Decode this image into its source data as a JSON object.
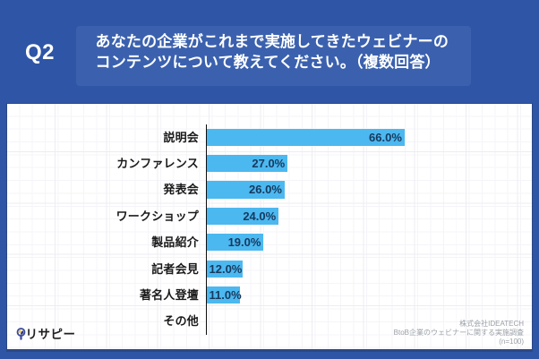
{
  "header": {
    "q_label": "Q2",
    "question_line1": "あなたの企業がこれまで実施してきたウェビナーの",
    "question_line2": "コンテンツについて教えてください。（複数回答）"
  },
  "chart_data": {
    "type": "bar",
    "orientation": "horizontal",
    "unit": "%",
    "categories": [
      "説明会",
      "カンファレンス",
      "発表会",
      "ワークショップ",
      "製品紹介",
      "記者会見",
      "著名人登壇",
      "その他"
    ],
    "values": [
      66.0,
      27.0,
      26.0,
      24.0,
      19.0,
      12.0,
      11.0,
      null
    ],
    "value_labels": [
      "66.0%",
      "27.0%",
      "26.0%",
      "24.0%",
      "19.0%",
      "12.0%",
      "11.0%",
      ""
    ],
    "xlim": [
      0,
      100
    ],
    "grid": true,
    "legend": false
  },
  "footer": {
    "logo_text": "リサピー",
    "credit_line1": "株式会社IDEATECH",
    "credit_line2": "BtoB企業のウェビナーに関する実施調査",
    "credit_line3": "(n=100)"
  },
  "colors": {
    "background": "#2e55a6",
    "question_box": "#3b61ae",
    "panel": "#ffffff",
    "bar": "#4cb8f0",
    "value_text": "#16395e",
    "category_text": "#1a1a1a",
    "credit_text": "#9aa0a6",
    "logo_ring": "#3b4a9e",
    "logo_pie_yellow": "#edc63d",
    "logo_pie_navy": "#2c3a72"
  }
}
